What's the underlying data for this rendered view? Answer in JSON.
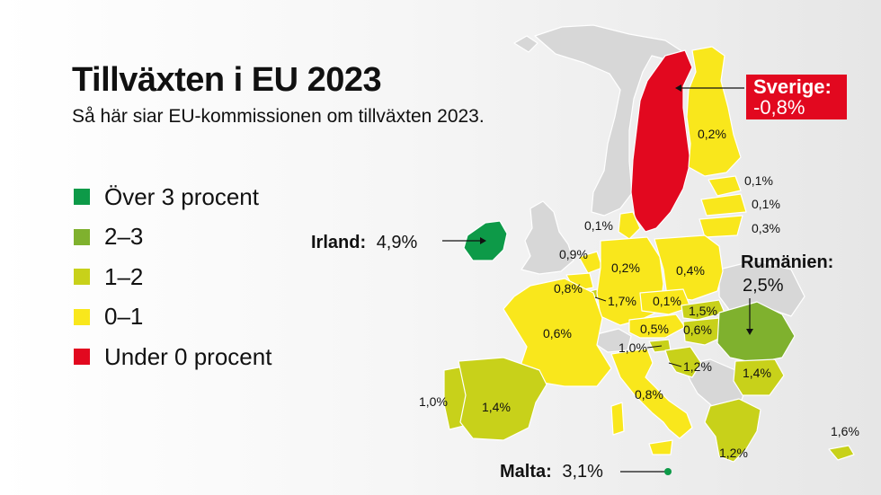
{
  "title": "Tillväxten i EU 2023",
  "subtitle": "Så här siar EU-kommissionen om tillväxten 2023.",
  "legend": [
    {
      "label": "Över 3 procent",
      "color": "#0d9a48"
    },
    {
      "label": "2–3",
      "color": "#7fb12e"
    },
    {
      "label": "1–2",
      "color": "#c8d11a"
    },
    {
      "label": "0–1",
      "color": "#f9e71c"
    },
    {
      "label": "Under 0 procent",
      "color": "#e2081f"
    }
  ],
  "colors": {
    "nonEU": "#d7d7d7",
    "border": "#ffffff"
  },
  "callouts": {
    "sverige": {
      "name": "Sverige:",
      "value": "-0,8%"
    },
    "irland": {
      "name": "Irland:",
      "value": "4,9%"
    },
    "rumanien": {
      "name": "Rumänien:",
      "value": "2,5%"
    },
    "malta": {
      "name": "Malta:",
      "value": "3,1%"
    }
  },
  "values": {
    "finland": "0,2%",
    "estonia": "0,1%",
    "latvia": "0,1%",
    "lithuania": "0,3%",
    "denmark": "0,1%",
    "netherlands": "0,9%",
    "belgium": "0,8%",
    "luxembourg": "1,7%",
    "germany": "0,2%",
    "poland": "0,4%",
    "czechia": "0,1%",
    "slovakia": "1,5%",
    "austria": "0,5%",
    "hungary": "0,6%",
    "slovenia": "1,0%",
    "croatia": "1,2%",
    "bulgaria": "1,4%",
    "france": "0,6%",
    "portugal": "1,0%",
    "spain": "1,4%",
    "italy": "0,8%",
    "greece": "1,2%",
    "cyprus": "1,6%"
  }
}
